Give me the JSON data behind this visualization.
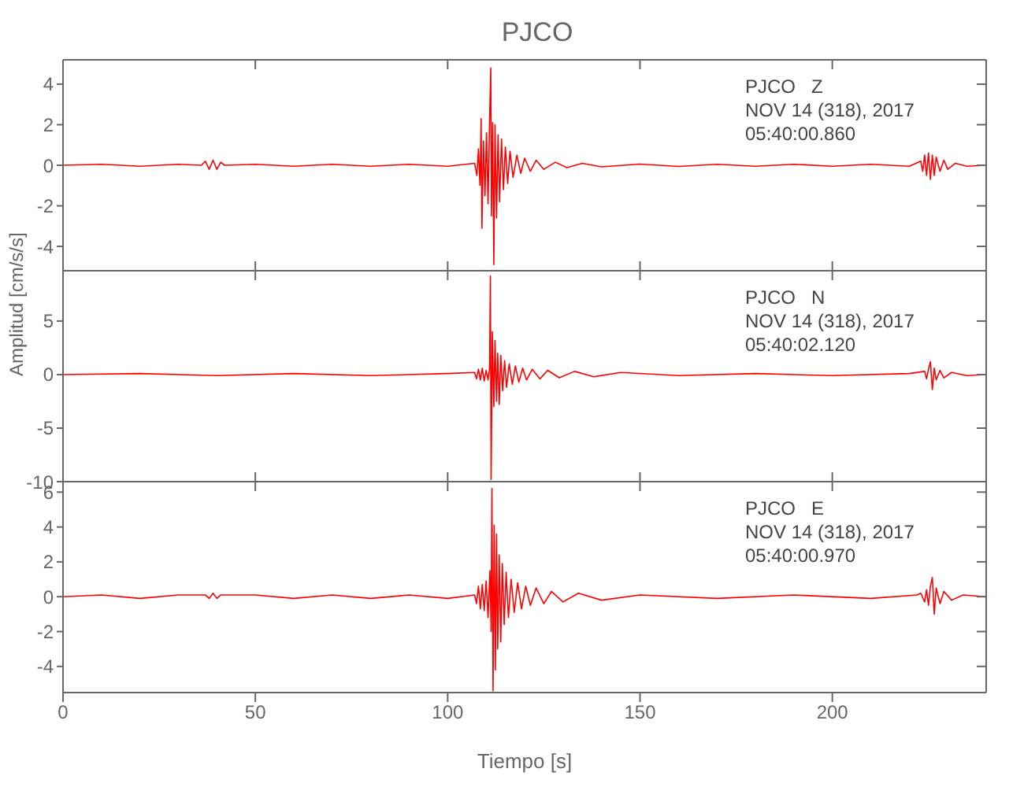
{
  "chart_data": [
    {
      "type": "line",
      "title": "PJCO",
      "color": "#ff0000",
      "xlim": [
        0,
        240
      ],
      "xticks": [
        0,
        50,
        100,
        150,
        200
      ],
      "ylim": [
        -5.2,
        5.2
      ],
      "yticks": [
        -4,
        -2,
        0,
        2,
        4
      ],
      "tick_labels": "y",
      "annotations": [
        "PJCO   Z",
        "NOV 14 (318), 2017",
        "05:40:00.860"
      ],
      "x": [
        0,
        10,
        20,
        30,
        36,
        37,
        38,
        39,
        40,
        41,
        42,
        50,
        60,
        70,
        80,
        90,
        100,
        107,
        107.6,
        108,
        108.4,
        108.7,
        108.9,
        109.3,
        109.7,
        110.1,
        110.5,
        110.9,
        111.2,
        111.4,
        111.7,
        112,
        112.3,
        112.7,
        113.1,
        113.5,
        114,
        114.5,
        115,
        115.6,
        116.2,
        117,
        118,
        119,
        120,
        121.5,
        123,
        125,
        128,
        131,
        135,
        140,
        150,
        160,
        170,
        180,
        190,
        200,
        210,
        220,
        223,
        223.5,
        224,
        224.5,
        225,
        225.5,
        226,
        226.5,
        227,
        228,
        229,
        230,
        232,
        235,
        240
      ],
      "values": [
        0,
        0.05,
        -0.05,
        0.05,
        0,
        0.2,
        -0.2,
        0.25,
        -0.2,
        0.15,
        0,
        0.05,
        -0.05,
        0.05,
        -0.05,
        0.05,
        -0.05,
        0.1,
        -0.5,
        0.8,
        -1,
        2.3,
        -3.1,
        1.2,
        -1.5,
        1.6,
        -1.9,
        2.2,
        4.8,
        -2.5,
        2.1,
        -4.9,
        2,
        -2.6,
        1.5,
        -1.8,
        1.3,
        -1.2,
        0.9,
        -0.9,
        0.7,
        -0.6,
        0.5,
        -0.4,
        0.35,
        -0.3,
        0.25,
        -0.2,
        0.15,
        -0.12,
        0.1,
        -0.08,
        0.06,
        -0.06,
        0.05,
        -0.05,
        0.05,
        -0.05,
        0.05,
        -0.05,
        0.2,
        -0.3,
        0.5,
        -0.5,
        0.6,
        -0.7,
        0.5,
        -0.5,
        0.4,
        -0.3,
        0.25,
        -0.2,
        0.1,
        -0.05,
        0
      ]
    },
    {
      "type": "line",
      "color": "#ff0000",
      "ylabel": "Amplitud [cm/s/s]",
      "xlim": [
        0,
        240
      ],
      "xticks": [
        0,
        50,
        100,
        150,
        200
      ],
      "ylim": [
        -10,
        9.7
      ],
      "yticks": [
        -10,
        -5,
        0,
        5
      ],
      "tick_labels": "y",
      "annotations": [
        "PJCO   N",
        "NOV 14 (318), 2017",
        "05:40:02.120"
      ],
      "x": [
        0,
        20,
        40,
        60,
        80,
        100,
        107,
        107.5,
        108,
        108.5,
        109,
        109.5,
        110,
        110.5,
        110.9,
        111.1,
        111.3,
        111.6,
        112,
        112.3,
        112.7,
        113,
        113.4,
        113.8,
        114.3,
        114.8,
        115.3,
        116,
        116.8,
        117.6,
        118.5,
        119.5,
        120.5,
        122,
        124,
        126,
        129,
        133,
        138,
        145,
        160,
        180,
        200,
        220,
        224,
        224.5,
        225,
        225.5,
        226,
        226.5,
        227,
        228,
        229,
        231,
        235,
        240
      ],
      "values": [
        0,
        0.1,
        -0.1,
        0.1,
        -0.1,
        0.1,
        0.2,
        -0.4,
        0.5,
        -0.5,
        0.6,
        -0.6,
        0.4,
        -0.5,
        0.6,
        9.2,
        -9.8,
        4,
        -3,
        3.2,
        -2.5,
        2,
        -2.8,
        1.8,
        -1.5,
        1.3,
        -1.2,
        1,
        -0.9,
        0.8,
        -0.7,
        0.6,
        -0.5,
        0.5,
        -0.4,
        0.4,
        -0.3,
        0.3,
        -0.2,
        0.2,
        -0.1,
        0.1,
        -0.1,
        0.1,
        0.3,
        -0.4,
        0.5,
        1.2,
        -1.4,
        0.6,
        -0.5,
        0.4,
        -0.3,
        0.2,
        -0.1,
        0
      ]
    },
    {
      "type": "line",
      "color": "#ff0000",
      "xlabel": "Tiempo [s]",
      "xlim": [
        0,
        240
      ],
      "xticks": [
        0,
        50,
        100,
        150,
        200
      ],
      "ylim": [
        -5.5,
        6.6
      ],
      "yticks": [
        -4,
        -2,
        0,
        2,
        4,
        6
      ],
      "annotations": [
        "PJCO   E",
        "NOV 14 (318), 2017",
        "05:40:00.970"
      ],
      "x": [
        0,
        10,
        20,
        30,
        37,
        38,
        39,
        40,
        41,
        50,
        60,
        70,
        80,
        90,
        100,
        107,
        107.5,
        108,
        108.5,
        109,
        109.5,
        110,
        110.5,
        111,
        111.3,
        111.5,
        111.8,
        112.1,
        112.4,
        112.7,
        113,
        113.4,
        113.8,
        114.2,
        114.7,
        115.2,
        115.8,
        116.5,
        117.3,
        118.2,
        119.2,
        120.3,
        121.5,
        123,
        125,
        127,
        130,
        134,
        140,
        150,
        170,
        190,
        210,
        222,
        223,
        224,
        224.5,
        225,
        225.5,
        226,
        226.5,
        227,
        228,
        229,
        231,
        234,
        240
      ],
      "values": [
        0,
        0.1,
        -0.1,
        0.1,
        0.1,
        -0.1,
        0.2,
        -0.1,
        0.1,
        0.1,
        -0.1,
        0.1,
        -0.1,
        0.1,
        -0.1,
        0.1,
        -0.4,
        0.6,
        -0.7,
        0.7,
        -0.8,
        0.9,
        -1.2,
        1.5,
        -2,
        6.2,
        -5.4,
        4.1,
        -4.2,
        3.6,
        -3,
        2.4,
        -2.6,
        1.9,
        -1.6,
        1.4,
        -1.2,
        1,
        -0.9,
        0.8,
        -0.7,
        0.6,
        -0.5,
        0.5,
        -0.4,
        0.3,
        -0.3,
        0.2,
        -0.2,
        0.1,
        -0.1,
        0.1,
        -0.1,
        0.1,
        0.2,
        -0.3,
        0.4,
        -0.5,
        0.6,
        1.1,
        -1,
        0.5,
        -0.4,
        0.3,
        -0.2,
        0.1,
        0
      ]
    }
  ]
}
